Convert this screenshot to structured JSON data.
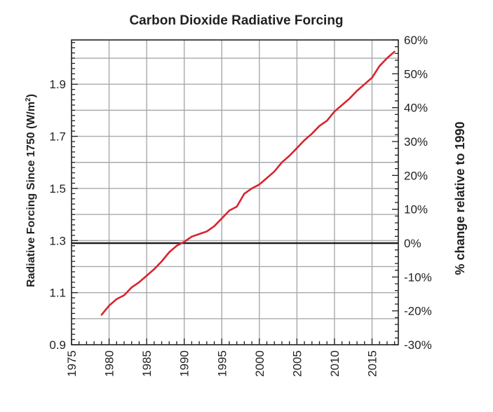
{
  "chart_data": {
    "type": "line",
    "title": "Carbon Dioxide Radiative Forcing",
    "ylabel": "Radiative Forcing Since 1750 (W/m",
    "ylabel_sup": "2",
    "ylabel_close": ")",
    "y2label": "% change relative to 1990",
    "xlim": [
      1975,
      2018.5
    ],
    "ylim": [
      0.9,
      2.07
    ],
    "x_ticks": [
      "1975",
      "1980",
      "1985",
      "1990",
      "1995",
      "2000",
      "2005",
      "2010",
      "2015"
    ],
    "y_ticks": [
      "0.9",
      "1.1",
      "1.3",
      "1.5",
      "1.7",
      "1.9"
    ],
    "y2_ticks": [
      "-30%",
      "-20%",
      "-10%",
      "0%",
      "10%",
      "20%",
      "30%",
      "40%",
      "50%",
      "60%"
    ],
    "y2lim": [
      -30,
      60
    ],
    "reference_line": 1.29,
    "grid": true,
    "series": [
      {
        "color": "#d9232e",
        "x": [
          1979,
          1980,
          1981,
          1982,
          1983,
          1984,
          1985,
          1986,
          1987,
          1988,
          1989,
          1990,
          1991,
          1992,
          1993,
          1994,
          1995,
          1996,
          1997,
          1998,
          1999,
          2000,
          2001,
          2002,
          2003,
          2004,
          2005,
          2006,
          2007,
          2008,
          2009,
          2010,
          2011,
          2012,
          2013,
          2014,
          2015,
          2016,
          2017,
          2018
        ],
        "y": [
          1.015,
          1.05,
          1.075,
          1.09,
          1.12,
          1.14,
          1.165,
          1.19,
          1.22,
          1.255,
          1.28,
          1.295,
          1.315,
          1.325,
          1.335,
          1.355,
          1.385,
          1.415,
          1.43,
          1.48,
          1.5,
          1.515,
          1.54,
          1.565,
          1.6,
          1.625,
          1.655,
          1.685,
          1.71,
          1.74,
          1.76,
          1.795,
          1.82,
          1.845,
          1.875,
          1.9,
          1.925,
          1.97,
          2.0,
          2.025
        ]
      }
    ]
  }
}
